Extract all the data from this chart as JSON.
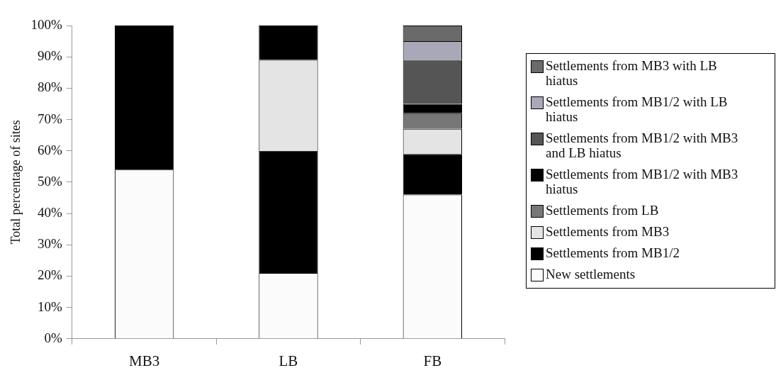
{
  "chart_data": {
    "type": "bar",
    "stacked": true,
    "ylabel": "Total percentage of sites",
    "categories": [
      "MB3",
      "LB",
      "FB"
    ],
    "ylim": [
      0,
      100
    ],
    "yticks": [
      {
        "value": 0,
        "label": "0%"
      },
      {
        "value": 10,
        "label": "10%"
      },
      {
        "value": 20,
        "label": "20%"
      },
      {
        "value": 30,
        "label": "30%"
      },
      {
        "value": 40,
        "label": "40%"
      },
      {
        "value": 50,
        "label": "50%"
      },
      {
        "value": 60,
        "label": "60%"
      },
      {
        "value": 70,
        "label": "70%"
      },
      {
        "value": 80,
        "label": "80%"
      },
      {
        "value": 90,
        "label": "90%"
      },
      {
        "value": 100,
        "label": "100%"
      }
    ],
    "grid": false,
    "legend": "right",
    "series": [
      {
        "name": "New settlements",
        "color": "#fbfbfb",
        "values": [
          54,
          21,
          46
        ]
      },
      {
        "name": "Settlements from MB1/2",
        "color": "#000000",
        "values": [
          46,
          39,
          13
        ]
      },
      {
        "name": "Settlements from MB3",
        "color": "#e4e4e4",
        "values": [
          null,
          29,
          8
        ]
      },
      {
        "name": "Settlements from LB",
        "color": "#777777",
        "values": [
          null,
          null,
          5
        ]
      },
      {
        "name": "Settlements from MB1/2 with MB3 hiatus",
        "color": "#000000",
        "values": [
          null,
          11,
          3
        ]
      },
      {
        "name": "Settlements from MB1/2 with MB3 and LB hiatus",
        "color": "#555555",
        "values": [
          null,
          null,
          14
        ]
      },
      {
        "name": "Settlements from MB1/2 with LB hiatus",
        "color": "#a8a8b8",
        "values": [
          null,
          null,
          6
        ]
      },
      {
        "name": "Settlements from MB3 with LB hiatus",
        "color": "#6a6a6a",
        "values": [
          null,
          null,
          5
        ]
      }
    ]
  }
}
